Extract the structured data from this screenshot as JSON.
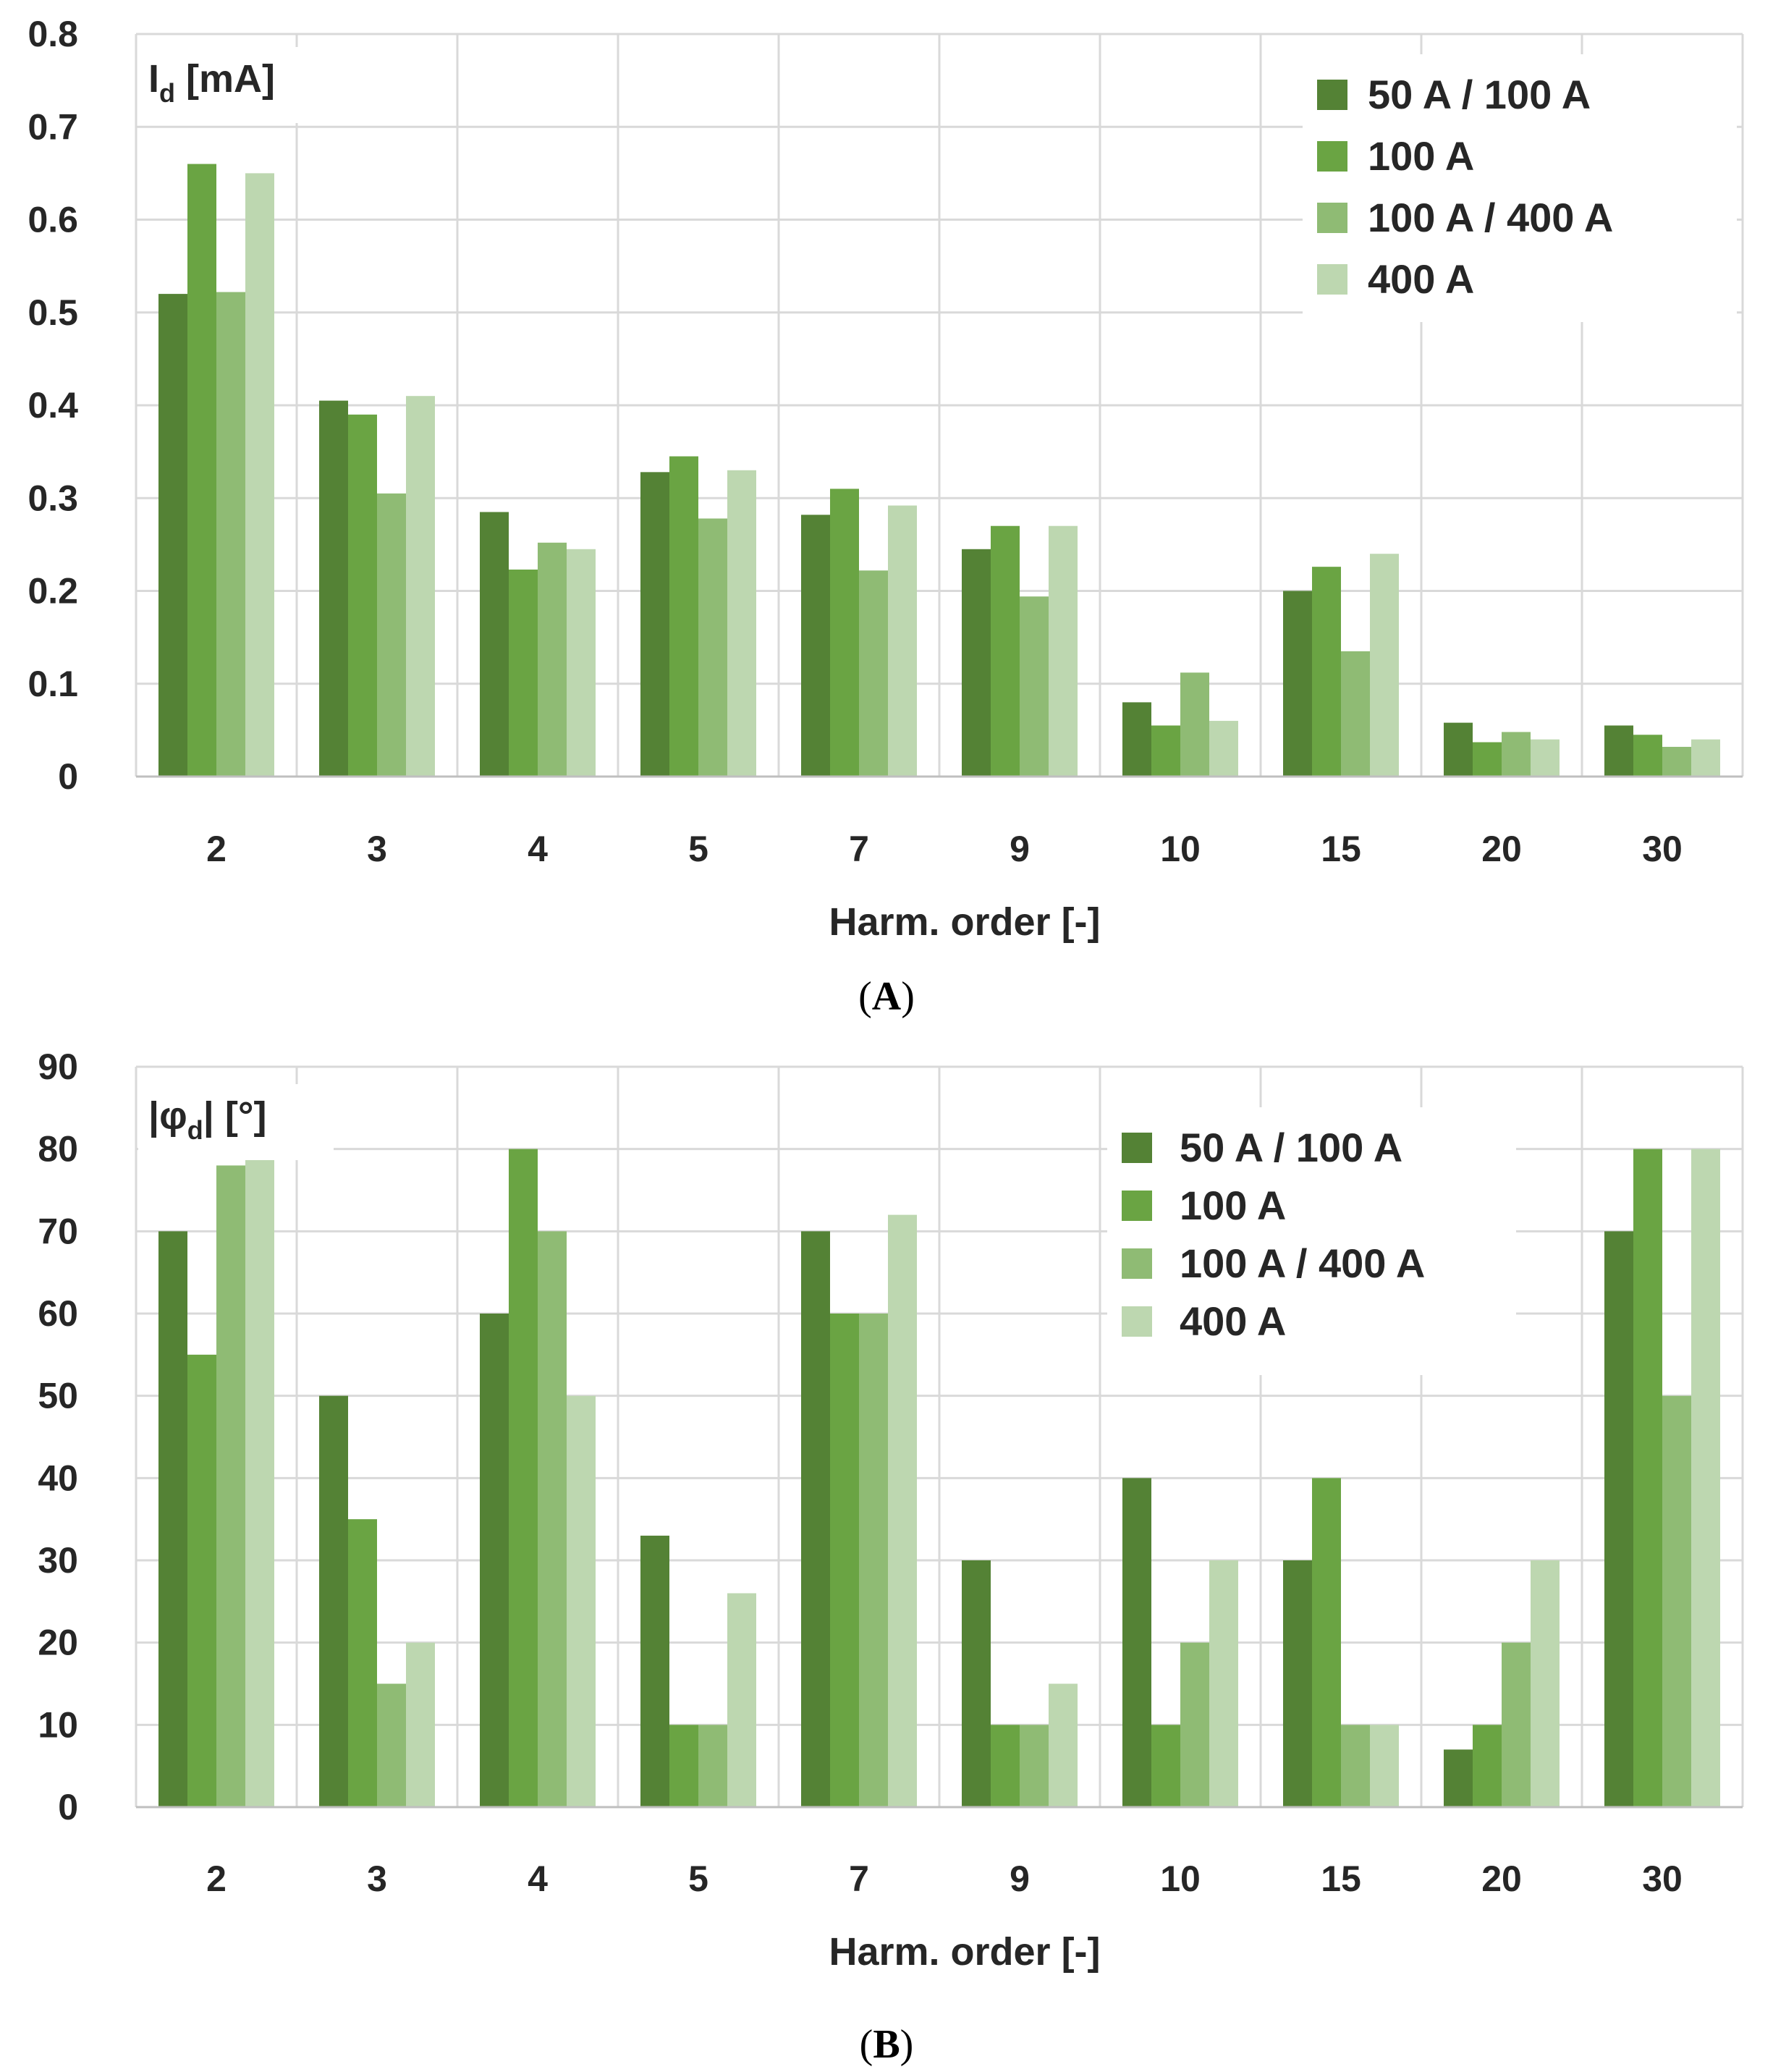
{
  "colors": [
    "#548235",
    "#6aa443",
    "#8fbb74",
    "#bdd7b0"
  ],
  "chart_data": [
    {
      "type": "bar",
      "panel_label": "A",
      "ylabel": {
        "main": "I",
        "sub": "d",
        "unit": " [mA]"
      },
      "xlabel": "Harm. order [-]",
      "ylim": [
        0,
        0.8
      ],
      "yticks": [
        "0",
        "0.1",
        "0.2",
        "0.3",
        "0.4",
        "0.5",
        "0.6",
        "0.7",
        "0.8"
      ],
      "categories": [
        "2",
        "3",
        "4",
        "5",
        "7",
        "9",
        "10",
        "15",
        "20",
        "30"
      ],
      "legend_position": "top-right",
      "series": [
        {
          "name": "50 A / 100 A",
          "values": [
            0.52,
            0.405,
            0.285,
            0.328,
            0.282,
            0.245,
            0.08,
            0.2,
            0.058,
            0.055
          ]
        },
        {
          "name": "100 A",
          "values": [
            0.66,
            0.39,
            0.223,
            0.345,
            0.31,
            0.27,
            0.055,
            0.226,
            0.037,
            0.045
          ]
        },
        {
          "name": "100 A / 400 A",
          "values": [
            0.522,
            0.305,
            0.252,
            0.278,
            0.222,
            0.194,
            0.112,
            0.135,
            0.048,
            0.032
          ]
        },
        {
          "name": "400 A",
          "values": [
            0.65,
            0.41,
            0.245,
            0.33,
            0.292,
            0.27,
            0.06,
            0.24,
            0.04,
            0.04
          ]
        }
      ]
    },
    {
      "type": "bar",
      "panel_label": "B",
      "ylabel": {
        "main": "|φ",
        "sub": "d",
        "unit": "| [°]"
      },
      "xlabel": "Harm. order [-]",
      "ylim": [
        0,
        90
      ],
      "yticks": [
        "0",
        "10",
        "20",
        "30",
        "40",
        "50",
        "60",
        "70",
        "80",
        "90"
      ],
      "categories": [
        "2",
        "3",
        "4",
        "5",
        "7",
        "9",
        "10",
        "15",
        "20",
        "30"
      ],
      "legend_position": "top-center",
      "series": [
        {
          "name": "50 A / 100 A",
          "values": [
            70,
            50,
            60,
            33,
            70,
            30,
            40,
            30,
            7,
            70
          ]
        },
        {
          "name": "100 A",
          "values": [
            55,
            35,
            80,
            10,
            60,
            10,
            10,
            40,
            10,
            80
          ]
        },
        {
          "name": "100 A / 400 A",
          "values": [
            78,
            15,
            70,
            10,
            60,
            10,
            20,
            10,
            20,
            50
          ]
        },
        {
          "name": "400 A",
          "values": [
            79.5,
            20,
            50,
            26,
            72,
            15,
            30,
            10,
            30,
            80
          ]
        }
      ]
    }
  ]
}
